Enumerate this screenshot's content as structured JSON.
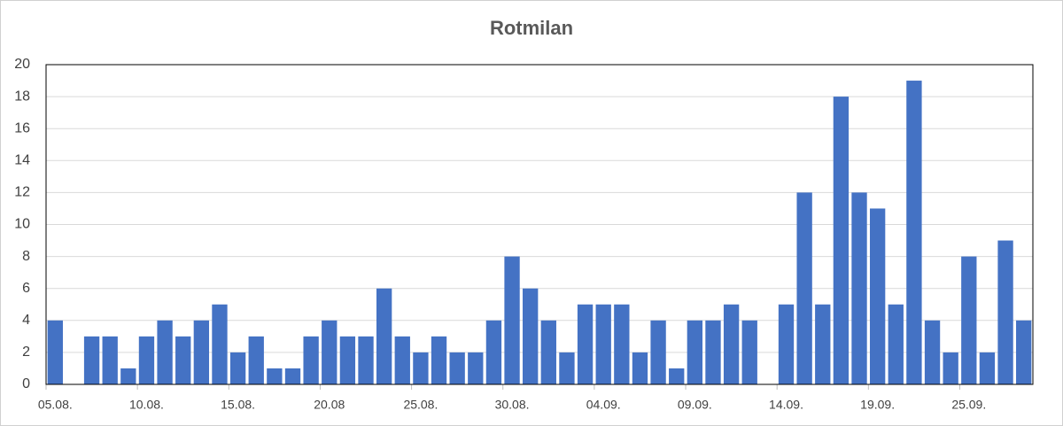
{
  "chart_data": {
    "type": "bar",
    "title": "Rotmilan",
    "categories": [
      "05.08.",
      null,
      null,
      null,
      null,
      "10.08.",
      null,
      null,
      null,
      null,
      "15.08.",
      null,
      null,
      null,
      null,
      "20.08",
      null,
      null,
      null,
      null,
      "25.08.",
      null,
      null,
      null,
      null,
      "30.08.",
      null,
      null,
      null,
      null,
      "04.09.",
      null,
      null,
      null,
      null,
      "09.09.",
      null,
      null,
      null,
      null,
      "14.09.",
      null,
      null,
      null,
      null,
      "19.09.",
      null,
      null,
      null,
      null,
      "25.09.",
      null,
      null,
      null
    ],
    "values": [
      4,
      0,
      3,
      3,
      1,
      3,
      4,
      3,
      4,
      5,
      2,
      3,
      1,
      1,
      3,
      4,
      3,
      3,
      6,
      3,
      2,
      3,
      2,
      2,
      4,
      8,
      6,
      4,
      2,
      5,
      5,
      5,
      2,
      4,
      1,
      4,
      4,
      5,
      4,
      0,
      5,
      12,
      5,
      18,
      12,
      11,
      5,
      19,
      4,
      2,
      8,
      2,
      9,
      4
    ],
    "color": "#4472c4",
    "ylim": [
      0,
      20
    ],
    "yticks": [
      0,
      2,
      4,
      6,
      8,
      10,
      12,
      14,
      16,
      18,
      20
    ],
    "grid": true
  }
}
